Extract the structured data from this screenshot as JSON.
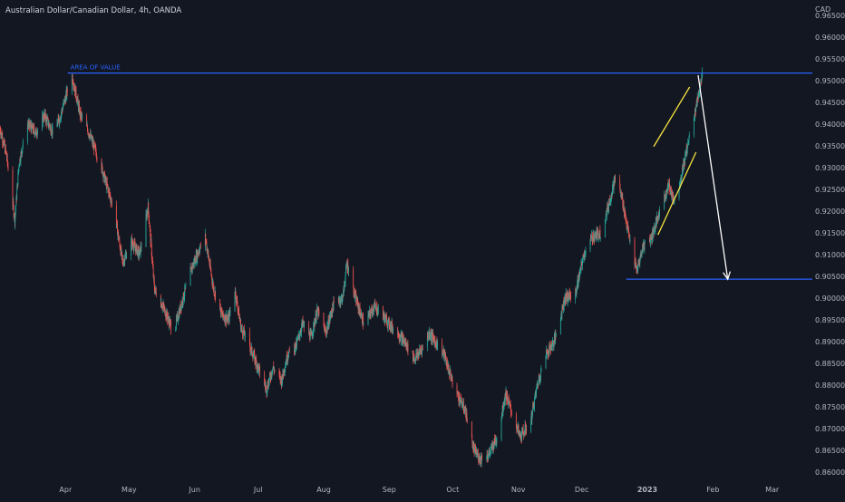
{
  "header": {
    "title": "Australian Dollar/Canadian Dollar, 4h, OANDA"
  },
  "colors": {
    "background": "#131722",
    "axis_text": "#b2b5be",
    "up": "#26a69a",
    "down": "#ef5350",
    "blue_line": "#2962ff",
    "yellow_line": "#f5e33f",
    "arrow": "#ffffff"
  },
  "chart_data": {
    "type": "candlestick",
    "title": "Australian Dollar/Canadian Dollar, 4h, OANDA",
    "y_unit": "CAD",
    "ylim": [
      0.8585,
      0.9685
    ],
    "y_ticks": [
      "0.96500",
      "0.96000",
      "0.95500",
      "0.95000",
      "0.94500",
      "0.94000",
      "0.93500",
      "0.93000",
      "0.92500",
      "0.92000",
      "0.91500",
      "0.91000",
      "0.90500",
      "0.90000",
      "0.89500",
      "0.89000",
      "0.88500",
      "0.88000",
      "0.87500",
      "0.87000",
      "0.86500",
      "0.86000"
    ],
    "x_ticks": [
      "Apr",
      "May",
      "Jun",
      "Jul",
      "Aug",
      "Sep",
      "Oct",
      "Nov",
      "Dec",
      "2023",
      "Feb",
      "Mar"
    ],
    "x_range": [
      "2022-03-01",
      "2023-03-20"
    ],
    "price_path": [
      [
        "2022-03-01",
        0.939
      ],
      [
        "2022-03-04",
        0.933
      ],
      [
        "2022-03-08",
        0.918
      ],
      [
        "2022-03-10",
        0.931
      ],
      [
        "2022-03-14",
        0.94
      ],
      [
        "2022-03-18",
        0.938
      ],
      [
        "2022-03-22",
        0.942
      ],
      [
        "2022-03-26",
        0.938
      ],
      [
        "2022-03-29",
        0.941
      ],
      [
        "2022-04-04",
        0.9512
      ],
      [
        "2022-04-08",
        0.942
      ],
      [
        "2022-04-12",
        0.938
      ],
      [
        "2022-04-18",
        0.93
      ],
      [
        "2022-04-24",
        0.92
      ],
      [
        "2022-04-28",
        0.908
      ],
      [
        "2022-05-02",
        0.913
      ],
      [
        "2022-05-06",
        0.91
      ],
      [
        "2022-05-10",
        0.921
      ],
      [
        "2022-05-13",
        0.902
      ],
      [
        "2022-05-18",
        0.897
      ],
      [
        "2022-05-22",
        0.892
      ],
      [
        "2022-05-26",
        0.899
      ],
      [
        "2022-05-30",
        0.906
      ],
      [
        "2022-06-03",
        0.911
      ],
      [
        "2022-06-06",
        0.914
      ],
      [
        "2022-06-10",
        0.902
      ],
      [
        "2022-06-14",
        0.896
      ],
      [
        "2022-06-17",
        0.895
      ],
      [
        "2022-06-20",
        0.902
      ],
      [
        "2022-06-23",
        0.893
      ],
      [
        "2022-06-27",
        0.889
      ],
      [
        "2022-07-01",
        0.884
      ],
      [
        "2022-07-05",
        0.879
      ],
      [
        "2022-07-08",
        0.884
      ],
      [
        "2022-07-12",
        0.881
      ],
      [
        "2022-07-15",
        0.887
      ],
      [
        "2022-07-19",
        0.889
      ],
      [
        "2022-07-22",
        0.894
      ],
      [
        "2022-07-26",
        0.891
      ],
      [
        "2022-07-29",
        0.897
      ],
      [
        "2022-08-02",
        0.892
      ],
      [
        "2022-08-06",
        0.899
      ],
      [
        "2022-08-10",
        0.9
      ],
      [
        "2022-08-12",
        0.908
      ],
      [
        "2022-08-16",
        0.9
      ],
      [
        "2022-08-20",
        0.894
      ],
      [
        "2022-08-25",
        0.898
      ],
      [
        "2022-08-29",
        0.896
      ],
      [
        "2022-09-01",
        0.894
      ],
      [
        "2022-09-05",
        0.892
      ],
      [
        "2022-09-08",
        0.89
      ],
      [
        "2022-09-13",
        0.886
      ],
      [
        "2022-09-16",
        0.888
      ],
      [
        "2022-09-20",
        0.892
      ],
      [
        "2022-09-24",
        0.889
      ],
      [
        "2022-09-27",
        0.887
      ],
      [
        "2022-09-30",
        0.882
      ],
      [
        "2022-10-03",
        0.878
      ],
      [
        "2022-10-07",
        0.874
      ],
      [
        "2022-10-11",
        0.865
      ],
      [
        "2022-10-14",
        0.863
      ],
      [
        "2022-10-18",
        0.864
      ],
      [
        "2022-10-22",
        0.868
      ],
      [
        "2022-10-26",
        0.878
      ],
      [
        "2022-10-30",
        0.872
      ],
      [
        "2022-11-02",
        0.868
      ],
      [
        "2022-11-07",
        0.872
      ],
      [
        "2022-11-10",
        0.88
      ],
      [
        "2022-11-14",
        0.887
      ],
      [
        "2022-11-18",
        0.89
      ],
      [
        "2022-11-23",
        0.9
      ],
      [
        "2022-11-28",
        0.901
      ],
      [
        "2022-12-02",
        0.91
      ],
      [
        "2022-12-06",
        0.914
      ],
      [
        "2022-12-10",
        0.915
      ],
      [
        "2022-12-14",
        0.922
      ],
      [
        "2022-12-17",
        0.928
      ],
      [
        "2022-12-20",
        0.923
      ],
      [
        "2022-12-23",
        0.915
      ],
      [
        "2022-12-27",
        0.906
      ],
      [
        "2022-12-30",
        0.912
      ],
      [
        "2023-01-03",
        0.914
      ],
      [
        "2023-01-07",
        0.92
      ],
      [
        "2023-01-11",
        0.926
      ],
      [
        "2023-01-14",
        0.922
      ],
      [
        "2023-01-17",
        0.928
      ],
      [
        "2023-01-20",
        0.935
      ],
      [
        "2023-01-24",
        0.944
      ],
      [
        "2023-01-27",
        0.9512
      ]
    ],
    "annotations": {
      "area_of_value": {
        "label": "AREA OF VALUE",
        "price": 0.9517,
        "from": "2022-04-02",
        "to": "2023-03-20"
      },
      "support_line": {
        "price": 0.9043,
        "from": "2022-12-22",
        "to": "2023-03-20"
      },
      "channel_upper": {
        "from": [
          "2023-01-04",
          0.9348
        ],
        "to": [
          "2023-01-21",
          0.9485
        ]
      },
      "channel_lower": {
        "from": [
          "2023-01-06",
          0.9145
        ],
        "to": [
          "2023-01-24",
          0.9335
        ]
      },
      "arrow": {
        "from": [
          "2023-01-25",
          0.9512
        ],
        "to": [
          "2023-02-08",
          0.9043
        ]
      }
    }
  }
}
